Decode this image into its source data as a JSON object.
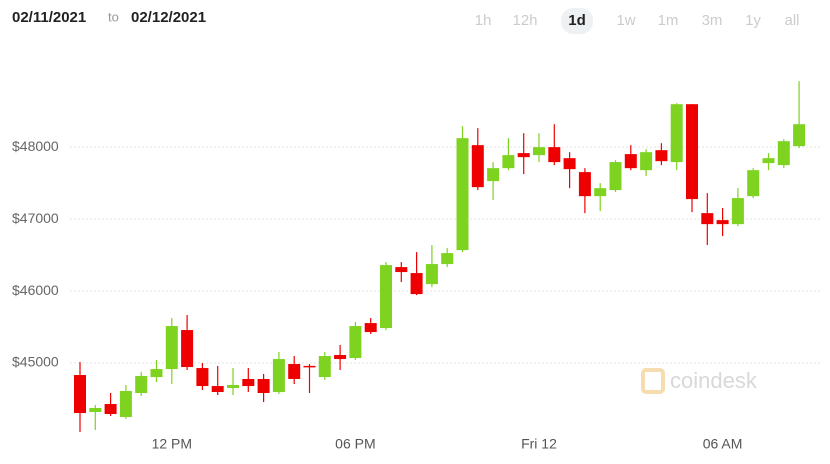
{
  "header": {
    "from": "02/11/2021",
    "to_word": "to",
    "to": "02/12/2021",
    "ranges": [
      "1h",
      "12h",
      "1d",
      "1w",
      "1m",
      "3m",
      "1y",
      "all"
    ],
    "selected": "1d"
  },
  "chart_data": {
    "type": "candlestick",
    "watermark": "coindesk",
    "categories": [
      null,
      null,
      null,
      null,
      null,
      null,
      "12 PM",
      null,
      null,
      null,
      null,
      null,
      null,
      null,
      null,
      null,
      null,
      null,
      "06 PM",
      null,
      null,
      null,
      null,
      null,
      null,
      null,
      null,
      null,
      null,
      null,
      "Fri 12",
      null,
      null,
      null,
      null,
      null,
      null,
      null,
      null,
      null,
      null,
      null,
      "06 AM",
      null,
      null,
      null,
      null,
      null
    ],
    "open": [
      44833,
      44319,
      44430,
      44250,
      44583,
      44805,
      44916,
      45458,
      44930,
      44680,
      44653,
      44778,
      44778,
      44597,
      44986,
      44960,
      44805,
      45111,
      45069,
      45555,
      45486,
      46333,
      46250,
      46097,
      46375,
      46569,
      48028,
      47528,
      47708,
      47917,
      47889,
      48000,
      47847,
      47653,
      47319,
      47403,
      47903,
      47680,
      47958,
      47792,
      48597,
      47083,
      46986,
      46930,
      47319,
      47778,
      47750,
      48014
    ],
    "high": [
      45014,
      44416,
      44583,
      44694,
      44875,
      45041,
      45625,
      45667,
      45000,
      44958,
      44930,
      44930,
      44847,
      45153,
      45097,
      44986,
      45153,
      45250,
      45569,
      45625,
      46403,
      46403,
      46541,
      46639,
      46597,
      48292,
      48264,
      47792,
      48125,
      48194,
      48194,
      48319,
      47930,
      47708,
      47500,
      47819,
      48028,
      47972,
      48055,
      48611,
      48597,
      47361,
      47153,
      47430,
      47708,
      47917,
      48111,
      48917
    ],
    "low": [
      44041,
      44069,
      44264,
      44222,
      44541,
      44736,
      44708,
      44903,
      44625,
      44555,
      44555,
      44597,
      44458,
      44569,
      44708,
      44583,
      44764,
      44903,
      45041,
      45403,
      45458,
      46125,
      45944,
      46055,
      46333,
      46541,
      47403,
      47264,
      47680,
      47625,
      47792,
      47750,
      47430,
      47083,
      47111,
      47375,
      47680,
      47597,
      47750,
      47680,
      47097,
      46639,
      46764,
      46903,
      47292,
      47680,
      47708,
      47986
    ],
    "close": [
      44305,
      44375,
      44291,
      44611,
      44819,
      44916,
      45514,
      44944,
      44680,
      44597,
      44694,
      44680,
      44583,
      45055,
      44778,
      44950,
      45097,
      45055,
      45514,
      45430,
      46361,
      46264,
      45958,
      46375,
      46528,
      48125,
      47444,
      47708,
      47889,
      47861,
      48000,
      47792,
      47694,
      47319,
      47430,
      47792,
      47708,
      47930,
      47805,
      48597,
      47278,
      46930,
      46930,
      47292,
      47680,
      47847,
      48083,
      48319
    ],
    "up_color": "#7ed321",
    "down_color": "#ee0000",
    "ylim": [
      43930,
      49350
    ],
    "yticks": [
      {
        "value": 45000,
        "label": "$45000"
      },
      {
        "value": 46000,
        "label": "$46000"
      },
      {
        "value": 47000,
        "label": "$47000"
      },
      {
        "value": 48000,
        "label": "$48000"
      }
    ],
    "grid": true
  }
}
